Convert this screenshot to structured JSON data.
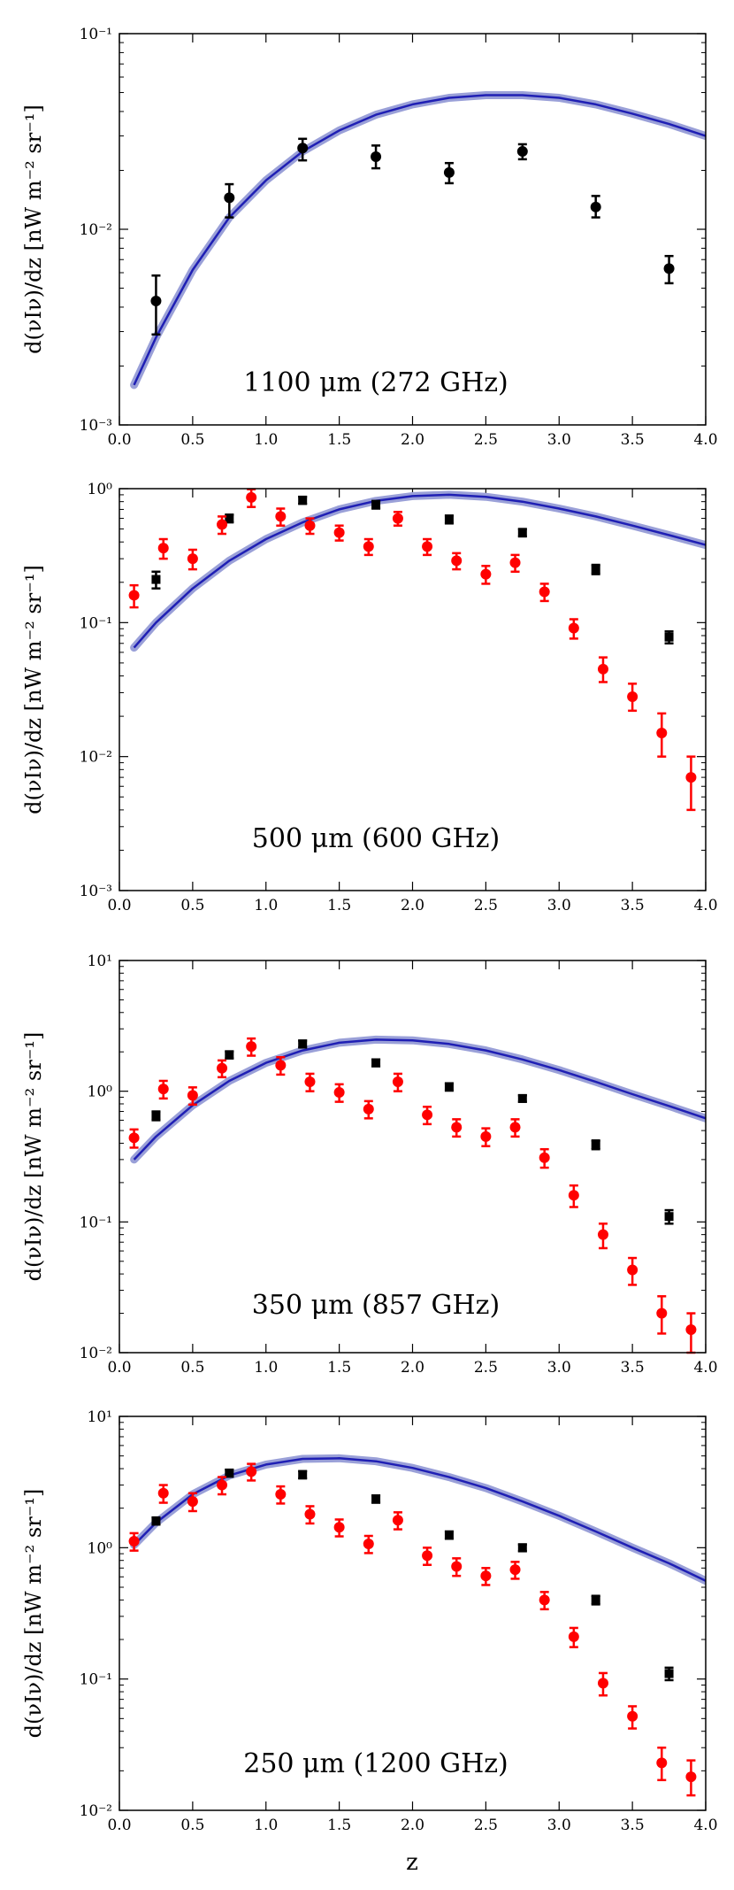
{
  "figure": {
    "xlabel": "z",
    "ylabel": "d(νIν)/dz [nW m⁻² sr⁻¹]"
  },
  "colors": {
    "model": "#1f1fb4",
    "model_band": "#9aa0d8",
    "black_points": "#000000",
    "red_points": "#ff0000"
  },
  "chart_data": [
    {
      "type": "scatter",
      "title": "1100 μm (272 GHz)",
      "xlabel": "",
      "ylabel": "d(νIν)/dz [nW m⁻² sr⁻¹]",
      "xlim": [
        0.0,
        4.0
      ],
      "ylim": [
        0.001,
        0.1
      ],
      "yscale": "log",
      "xticks": [
        "0.0",
        "0.5",
        "1.0",
        "1.5",
        "2.0",
        "2.5",
        "3.0",
        "3.5",
        "4.0"
      ],
      "yticks": [
        {
          "value": 0.001,
          "label": "10⁻³"
        },
        {
          "value": 0.01,
          "label": "10⁻²"
        },
        {
          "value": 0.1,
          "label": "10⁻¹"
        }
      ],
      "model": {
        "name": "model",
        "x": [
          0.1,
          0.25,
          0.5,
          0.75,
          1.0,
          1.25,
          1.5,
          1.75,
          2.0,
          2.25,
          2.5,
          2.75,
          3.0,
          3.25,
          3.5,
          3.75,
          4.0
        ],
        "y": [
          0.0016,
          0.0028,
          0.0062,
          0.0115,
          0.0178,
          0.025,
          0.032,
          0.0385,
          0.0435,
          0.047,
          0.0485,
          0.0485,
          0.047,
          0.0435,
          0.039,
          0.0345,
          0.03
        ]
      },
      "series": [
        {
          "name": "black",
          "color": "#000000",
          "marker": "circle",
          "x": [
            0.25,
            0.75,
            1.25,
            1.75,
            2.25,
            2.75,
            3.25,
            3.75
          ],
          "y": [
            0.0043,
            0.0145,
            0.026,
            0.0235,
            0.0195,
            0.025,
            0.013,
            0.0063
          ],
          "err_low": [
            0.0029,
            0.0115,
            0.0225,
            0.0205,
            0.0172,
            0.0228,
            0.0115,
            0.0053
          ],
          "err_high": [
            0.0058,
            0.017,
            0.029,
            0.0268,
            0.0218,
            0.0272,
            0.0148,
            0.0073
          ]
        }
      ]
    },
    {
      "type": "scatter",
      "title": "500 μm (600 GHz)",
      "xlabel": "",
      "ylabel": "d(νIν)/dz [nW m⁻² sr⁻¹]",
      "xlim": [
        0.0,
        4.0
      ],
      "ylim": [
        0.001,
        1.0
      ],
      "yscale": "log",
      "xticks": [
        "0.0",
        "0.5",
        "1.0",
        "1.5",
        "2.0",
        "2.5",
        "3.0",
        "3.5",
        "4.0"
      ],
      "yticks": [
        {
          "value": 0.001,
          "label": "10⁻³"
        },
        {
          "value": 0.01,
          "label": "10⁻²"
        },
        {
          "value": 0.1,
          "label": "10⁻¹"
        },
        {
          "value": 1.0,
          "label": "10⁰"
        }
      ],
      "model": {
        "name": "model",
        "x": [
          0.1,
          0.25,
          0.5,
          0.75,
          1.0,
          1.25,
          1.5,
          1.75,
          2.0,
          2.25,
          2.5,
          2.75,
          3.0,
          3.25,
          3.5,
          3.75,
          4.0
        ],
        "y": [
          0.065,
          0.1,
          0.18,
          0.29,
          0.42,
          0.56,
          0.7,
          0.81,
          0.88,
          0.9,
          0.87,
          0.8,
          0.71,
          0.62,
          0.53,
          0.45,
          0.38
        ]
      },
      "series": [
        {
          "name": "black",
          "color": "#000000",
          "marker": "square",
          "x": [
            0.25,
            0.75,
            1.25,
            1.75,
            2.25,
            2.75,
            3.25,
            3.75
          ],
          "y": [
            0.21,
            0.6,
            0.82,
            0.76,
            0.59,
            0.47,
            0.25,
            0.078
          ],
          "err_low": [
            0.18,
            0.56,
            0.77,
            0.71,
            0.55,
            0.44,
            0.23,
            0.07
          ],
          "err_high": [
            0.24,
            0.64,
            0.87,
            0.81,
            0.63,
            0.5,
            0.27,
            0.086
          ]
        },
        {
          "name": "red",
          "color": "#ff0000",
          "marker": "circle",
          "x": [
            0.1,
            0.3,
            0.5,
            0.7,
            0.9,
            1.1,
            1.3,
            1.5,
            1.7,
            1.9,
            2.1,
            2.3,
            2.5,
            2.7,
            2.9,
            3.1,
            3.3,
            3.5,
            3.7,
            3.9
          ],
          "y": [
            0.16,
            0.36,
            0.3,
            0.54,
            0.86,
            0.62,
            0.53,
            0.47,
            0.37,
            0.6,
            0.37,
            0.29,
            0.23,
            0.28,
            0.17,
            0.091,
            0.045,
            0.028,
            0.015,
            0.007
          ],
          "err_low": [
            0.13,
            0.3,
            0.25,
            0.46,
            0.73,
            0.53,
            0.46,
            0.41,
            0.32,
            0.53,
            0.32,
            0.25,
            0.195,
            0.24,
            0.145,
            0.076,
            0.036,
            0.022,
            0.01,
            0.004
          ],
          "err_high": [
            0.19,
            0.42,
            0.35,
            0.62,
            0.99,
            0.71,
            0.6,
            0.53,
            0.42,
            0.67,
            0.42,
            0.33,
            0.265,
            0.32,
            0.195,
            0.106,
            0.055,
            0.035,
            0.021,
            0.01
          ]
        }
      ]
    },
    {
      "type": "scatter",
      "title": "350 μm (857 GHz)",
      "xlabel": "",
      "ylabel": "d(νIν)/dz [nW m⁻² sr⁻¹]",
      "xlim": [
        0.0,
        4.0
      ],
      "ylim": [
        0.01,
        10.0
      ],
      "yscale": "log",
      "xticks": [
        "0.0",
        "0.5",
        "1.0",
        "1.5",
        "2.0",
        "2.5",
        "3.0",
        "3.5",
        "4.0"
      ],
      "yticks": [
        {
          "value": 0.01,
          "label": "10⁻²"
        },
        {
          "value": 0.1,
          "label": "10⁻¹"
        },
        {
          "value": 1.0,
          "label": "10⁰"
        },
        {
          "value": 10.0,
          "label": "10¹"
        }
      ],
      "model": {
        "name": "model",
        "x": [
          0.1,
          0.25,
          0.5,
          0.75,
          1.0,
          1.25,
          1.5,
          1.75,
          2.0,
          2.25,
          2.5,
          2.75,
          3.0,
          3.25,
          3.5,
          3.75,
          4.0
        ],
        "y": [
          0.3,
          0.45,
          0.78,
          1.2,
          1.65,
          2.05,
          2.35,
          2.48,
          2.45,
          2.3,
          2.05,
          1.75,
          1.45,
          1.18,
          0.95,
          0.77,
          0.62
        ]
      },
      "series": [
        {
          "name": "black",
          "color": "#000000",
          "marker": "square",
          "x": [
            0.25,
            0.75,
            1.25,
            1.75,
            2.25,
            2.75,
            3.25,
            3.75
          ],
          "y": [
            0.65,
            1.9,
            2.3,
            1.65,
            1.08,
            0.88,
            0.39,
            0.11
          ],
          "err_low": [
            0.6,
            1.78,
            2.16,
            1.55,
            1.01,
            0.83,
            0.36,
            0.097
          ],
          "err_high": [
            0.7,
            2.02,
            2.44,
            1.75,
            1.15,
            0.93,
            0.42,
            0.123
          ]
        },
        {
          "name": "red",
          "color": "#ff0000",
          "marker": "circle",
          "x": [
            0.1,
            0.3,
            0.5,
            0.7,
            0.9,
            1.1,
            1.3,
            1.5,
            1.7,
            1.9,
            2.1,
            2.3,
            2.5,
            2.7,
            2.9,
            3.1,
            3.3,
            3.5,
            3.7,
            3.9
          ],
          "y": [
            0.44,
            1.04,
            0.93,
            1.5,
            2.2,
            1.58,
            1.18,
            0.98,
            0.73,
            1.18,
            0.66,
            0.53,
            0.45,
            0.53,
            0.31,
            0.16,
            0.08,
            0.043,
            0.02,
            0.015
          ],
          "err_low": [
            0.37,
            0.88,
            0.79,
            1.28,
            1.87,
            1.34,
            1.0,
            0.83,
            0.62,
            1.0,
            0.56,
            0.45,
            0.38,
            0.45,
            0.26,
            0.13,
            0.063,
            0.033,
            0.014,
            0.01
          ],
          "err_high": [
            0.51,
            1.2,
            1.07,
            1.72,
            2.53,
            1.82,
            1.36,
            1.13,
            0.84,
            1.36,
            0.76,
            0.61,
            0.52,
            0.61,
            0.36,
            0.19,
            0.097,
            0.053,
            0.027,
            0.02
          ]
        }
      ]
    },
    {
      "type": "scatter",
      "title": "250 μm (1200 GHz)",
      "xlabel": "z",
      "ylabel": "d(νIν)/dz [nW m⁻² sr⁻¹]",
      "xlim": [
        0.0,
        4.0
      ],
      "ylim": [
        0.01,
        10.0
      ],
      "yscale": "log",
      "xticks": [
        "0.0",
        "0.5",
        "1.0",
        "1.5",
        "2.0",
        "2.5",
        "3.0",
        "3.5",
        "4.0"
      ],
      "yticks": [
        {
          "value": 0.01,
          "label": "10⁻²"
        },
        {
          "value": 0.1,
          "label": "10⁻¹"
        },
        {
          "value": 1.0,
          "label": "10⁰"
        },
        {
          "value": 10.0,
          "label": "10¹"
        }
      ],
      "model": {
        "name": "model",
        "x": [
          0.1,
          0.25,
          0.5,
          0.75,
          1.0,
          1.25,
          1.5,
          1.75,
          2.0,
          2.25,
          2.5,
          2.75,
          3.0,
          3.25,
          3.5,
          3.75,
          4.0
        ],
        "y": [
          1.05,
          1.55,
          2.55,
          3.55,
          4.3,
          4.75,
          4.8,
          4.55,
          4.05,
          3.45,
          2.85,
          2.25,
          1.75,
          1.33,
          1.0,
          0.76,
          0.56
        ]
      },
      "series": [
        {
          "name": "black",
          "color": "#000000",
          "marker": "square",
          "x": [
            0.25,
            0.75,
            1.25,
            1.75,
            2.25,
            2.75,
            3.25,
            3.75
          ],
          "y": [
            1.6,
            3.7,
            3.6,
            2.35,
            1.25,
            1.0,
            0.4,
            0.11
          ],
          "err_low": [
            1.5,
            3.47,
            3.37,
            2.2,
            1.17,
            0.94,
            0.37,
            0.098
          ],
          "err_high": [
            1.7,
            3.93,
            3.83,
            2.5,
            1.33,
            1.06,
            0.43,
            0.122
          ]
        },
        {
          "name": "red",
          "color": "#ff0000",
          "marker": "circle",
          "x": [
            0.1,
            0.3,
            0.5,
            0.7,
            0.9,
            1.1,
            1.3,
            1.5,
            1.7,
            1.9,
            2.1,
            2.3,
            2.5,
            2.7,
            2.9,
            3.1,
            3.3,
            3.5,
            3.7,
            3.9
          ],
          "y": [
            1.12,
            2.6,
            2.25,
            3.0,
            3.8,
            2.55,
            1.8,
            1.43,
            1.07,
            1.62,
            0.87,
            0.72,
            0.61,
            0.68,
            0.4,
            0.21,
            0.093,
            0.052,
            0.023,
            0.018
          ],
          "err_low": [
            0.95,
            2.2,
            1.9,
            2.55,
            3.25,
            2.17,
            1.53,
            1.22,
            0.91,
            1.38,
            0.74,
            0.61,
            0.52,
            0.58,
            0.34,
            0.175,
            0.075,
            0.042,
            0.017,
            0.013
          ],
          "err_high": [
            1.29,
            3.0,
            2.6,
            3.45,
            4.35,
            2.93,
            2.07,
            1.64,
            1.23,
            1.86,
            1.0,
            0.83,
            0.7,
            0.78,
            0.46,
            0.245,
            0.111,
            0.062,
            0.03,
            0.024
          ]
        }
      ]
    }
  ]
}
